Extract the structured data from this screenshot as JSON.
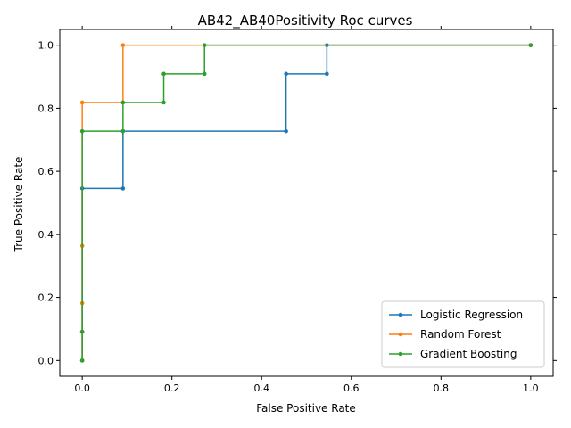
{
  "chart_data": {
    "type": "line",
    "step": "post",
    "title": "AB42_AB40Positivity Roc curves",
    "xlabel": "False Positive Rate",
    "ylabel": "True Positive Rate",
    "xlim": [
      -0.05,
      1.05
    ],
    "ylim": [
      -0.05,
      1.05
    ],
    "xticks": [
      0.0,
      0.2,
      0.4,
      0.6,
      0.8,
      1.0
    ],
    "yticks": [
      0.0,
      0.2,
      0.4,
      0.6,
      0.8,
      1.0
    ],
    "xtick_labels": [
      "0.0",
      "0.2",
      "0.4",
      "0.6",
      "0.8",
      "1.0"
    ],
    "ytick_labels": [
      "0.0",
      "0.2",
      "0.4",
      "0.6",
      "0.8",
      "1.0"
    ],
    "grid": false,
    "legend_position": "lower-right",
    "series": [
      {
        "name": "Logistic Regression",
        "color": "#1f77b4",
        "x": [
          0.0,
          0.0,
          0.0,
          0.0909,
          0.0909,
          0.4545,
          0.4545,
          0.5455,
          0.5455,
          1.0
        ],
        "y": [
          0.0,
          0.0909,
          0.5455,
          0.5455,
          0.7273,
          0.7273,
          0.9091,
          0.9091,
          1.0,
          1.0
        ]
      },
      {
        "name": "Random Forest",
        "color": "#ff7f0e",
        "x": [
          0.0,
          0.0,
          0.0,
          0.0,
          0.0,
          0.0909,
          0.0909,
          1.0
        ],
        "y": [
          0.0,
          0.0909,
          0.1818,
          0.3636,
          0.8182,
          0.8182,
          1.0,
          1.0
        ]
      },
      {
        "name": "Gradient Boosting",
        "color": "#2ca02c",
        "x": [
          0.0,
          0.0,
          0.0,
          0.0909,
          0.0909,
          0.1818,
          0.1818,
          0.2727,
          0.2727,
          1.0
        ],
        "y": [
          0.0,
          0.0909,
          0.7273,
          0.7273,
          0.8182,
          0.8182,
          0.9091,
          0.9091,
          1.0,
          1.0
        ]
      }
    ]
  }
}
